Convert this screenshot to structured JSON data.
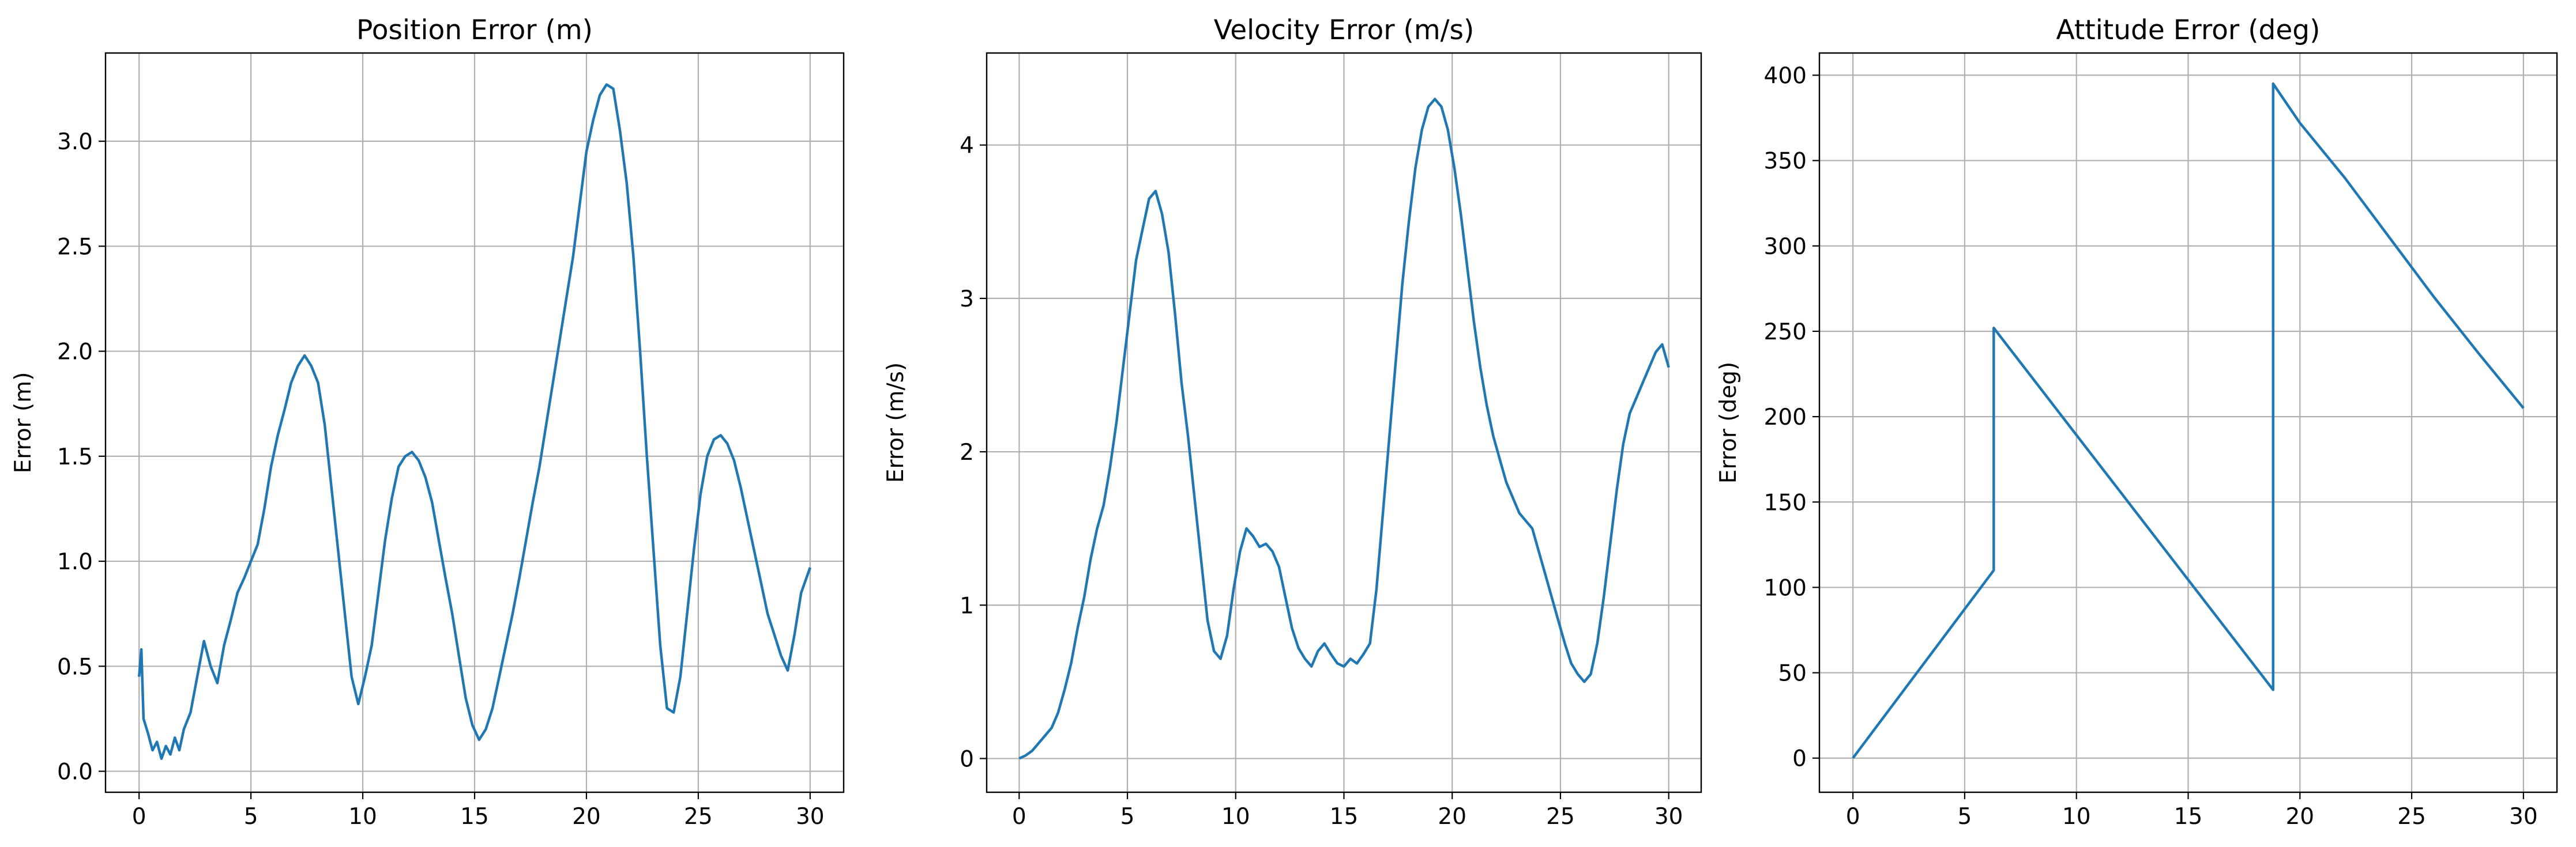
{
  "style": {
    "line_color": "#1f77b4",
    "grid_color": "#b0b0b0",
    "grid": true
  },
  "chart_data": [
    {
      "type": "line",
      "title": "Position Error (m)",
      "xlabel": "",
      "ylabel": "Error (m)",
      "xlim": [
        -1.5,
        31.5
      ],
      "ylim": [
        -0.1,
        3.42
      ],
      "xticks": [
        0,
        5,
        10,
        15,
        20,
        25,
        30
      ],
      "xtick_labels": [
        "0",
        "5",
        "10",
        "15",
        "20",
        "25",
        "30"
      ],
      "yticks": [
        0.0,
        0.5,
        1.0,
        1.5,
        2.0,
        2.5,
        3.0
      ],
      "ytick_labels": [
        "0.0",
        "0.5",
        "1.0",
        "1.5",
        "2.0",
        "2.5",
        "3.0"
      ],
      "series": [
        {
          "x": [
            0,
            0.1,
            0.2,
            0.4,
            0.6,
            0.8,
            1.0,
            1.2,
            1.4,
            1.6,
            1.8,
            2.0,
            2.3,
            2.6,
            2.9,
            3.2,
            3.5,
            3.8,
            4.1,
            4.4,
            4.7,
            5.0,
            5.3,
            5.6,
            5.9,
            6.2,
            6.5,
            6.8,
            7.1,
            7.4,
            7.7,
            8.0,
            8.3,
            8.6,
            8.9,
            9.2,
            9.5,
            9.8,
            10.1,
            10.4,
            10.7,
            11.0,
            11.3,
            11.6,
            11.9,
            12.2,
            12.5,
            12.8,
            13.1,
            13.4,
            13.7,
            14.0,
            14.3,
            14.6,
            14.9,
            15.2,
            15.5,
            15.8,
            16.1,
            16.4,
            16.7,
            17.0,
            17.3,
            17.6,
            17.9,
            18.2,
            18.5,
            18.8,
            19.1,
            19.4,
            19.7,
            20.0,
            20.3,
            20.6,
            20.9,
            21.2,
            21.5,
            21.8,
            22.1,
            22.4,
            22.7,
            23.0,
            23.3,
            23.6,
            23.9,
            24.2,
            24.5,
            24.8,
            25.1,
            25.4,
            25.7,
            26.0,
            26.3,
            26.6,
            26.9,
            27.2,
            27.5,
            27.8,
            28.1,
            28.4,
            28.7,
            29.0,
            29.3,
            29.6,
            30.0
          ],
          "values": [
            0.45,
            0.58,
            0.25,
            0.18,
            0.1,
            0.14,
            0.06,
            0.12,
            0.08,
            0.16,
            0.1,
            0.2,
            0.28,
            0.45,
            0.62,
            0.5,
            0.42,
            0.6,
            0.72,
            0.85,
            0.92,
            1.0,
            1.08,
            1.25,
            1.45,
            1.6,
            1.72,
            1.85,
            1.93,
            1.98,
            1.93,
            1.85,
            1.65,
            1.35,
            1.05,
            0.75,
            0.45,
            0.32,
            0.45,
            0.6,
            0.85,
            1.1,
            1.3,
            1.45,
            1.5,
            1.52,
            1.48,
            1.4,
            1.28,
            1.1,
            0.92,
            0.75,
            0.55,
            0.35,
            0.22,
            0.15,
            0.2,
            0.3,
            0.45,
            0.6,
            0.75,
            0.92,
            1.1,
            1.28,
            1.45,
            1.65,
            1.85,
            2.05,
            2.25,
            2.45,
            2.7,
            2.95,
            3.1,
            3.22,
            3.27,
            3.25,
            3.05,
            2.8,
            2.45,
            2.0,
            1.5,
            1.05,
            0.6,
            0.3,
            0.28,
            0.45,
            0.75,
            1.05,
            1.32,
            1.5,
            1.58,
            1.6,
            1.56,
            1.48,
            1.35,
            1.2,
            1.05,
            0.9,
            0.75,
            0.65,
            0.55,
            0.48,
            0.65,
            0.85,
            0.97
          ]
        }
      ]
    },
    {
      "type": "line",
      "title": "Velocity Error (m/s)",
      "xlabel": "",
      "ylabel": "Error (m/s)",
      "xlim": [
        -1.5,
        31.5
      ],
      "ylim": [
        -0.22,
        4.6
      ],
      "xticks": [
        0,
        5,
        10,
        15,
        20,
        25,
        30
      ],
      "xtick_labels": [
        "0",
        "5",
        "10",
        "15",
        "20",
        "25",
        "30"
      ],
      "yticks": [
        0,
        1,
        2,
        3,
        4
      ],
      "ytick_labels": [
        "0",
        "1",
        "2",
        "3",
        "4"
      ],
      "series": [
        {
          "x": [
            0,
            0.3,
            0.6,
            0.9,
            1.2,
            1.5,
            1.8,
            2.1,
            2.4,
            2.7,
            3.0,
            3.3,
            3.6,
            3.9,
            4.2,
            4.5,
            4.8,
            5.1,
            5.4,
            5.7,
            6.0,
            6.3,
            6.6,
            6.9,
            7.2,
            7.5,
            7.8,
            8.1,
            8.4,
            8.7,
            9.0,
            9.3,
            9.6,
            9.9,
            10.2,
            10.5,
            10.8,
            11.1,
            11.4,
            11.7,
            12.0,
            12.3,
            12.6,
            12.9,
            13.2,
            13.5,
            13.8,
            14.1,
            14.4,
            14.7,
            15.0,
            15.3,
            15.6,
            15.9,
            16.2,
            16.5,
            16.8,
            17.1,
            17.4,
            17.7,
            18.0,
            18.3,
            18.6,
            18.9,
            19.2,
            19.5,
            19.8,
            20.1,
            20.4,
            20.7,
            21.0,
            21.3,
            21.6,
            21.9,
            22.2,
            22.5,
            22.8,
            23.1,
            23.4,
            23.7,
            24.0,
            24.3,
            24.6,
            24.9,
            25.2,
            25.5,
            25.8,
            26.1,
            26.4,
            26.7,
            27.0,
            27.3,
            27.6,
            27.9,
            28.2,
            28.5,
            28.8,
            29.1,
            29.4,
            29.7,
            30.0
          ],
          "values": [
            0.0,
            0.02,
            0.05,
            0.1,
            0.15,
            0.2,
            0.3,
            0.45,
            0.62,
            0.85,
            1.05,
            1.3,
            1.5,
            1.65,
            1.9,
            2.2,
            2.55,
            2.9,
            3.25,
            3.45,
            3.65,
            3.7,
            3.55,
            3.3,
            2.9,
            2.45,
            2.1,
            1.7,
            1.3,
            0.9,
            0.7,
            0.65,
            0.8,
            1.1,
            1.35,
            1.5,
            1.45,
            1.38,
            1.4,
            1.35,
            1.25,
            1.05,
            0.85,
            0.72,
            0.65,
            0.6,
            0.7,
            0.75,
            0.68,
            0.62,
            0.6,
            0.65,
            0.62,
            0.68,
            0.75,
            1.1,
            1.6,
            2.1,
            2.6,
            3.1,
            3.5,
            3.85,
            4.1,
            4.25,
            4.3,
            4.25,
            4.1,
            3.85,
            3.55,
            3.2,
            2.85,
            2.55,
            2.3,
            2.1,
            1.95,
            1.8,
            1.7,
            1.6,
            1.55,
            1.5,
            1.35,
            1.2,
            1.05,
            0.9,
            0.75,
            0.62,
            0.55,
            0.5,
            0.55,
            0.75,
            1.05,
            1.4,
            1.75,
            2.05,
            2.25,
            2.35,
            2.45,
            2.55,
            2.65,
            2.7,
            2.55
          ]
        }
      ]
    },
    {
      "type": "line",
      "title": "Attitude Error (deg)",
      "xlabel": "",
      "ylabel": "Error (deg)",
      "xlim": [
        -1.5,
        31.5
      ],
      "ylim": [
        -20,
        413
      ],
      "xticks": [
        0,
        5,
        10,
        15,
        20,
        25,
        30
      ],
      "xtick_labels": [
        "0",
        "5",
        "10",
        "15",
        "20",
        "25",
        "30"
      ],
      "yticks": [
        0,
        50,
        100,
        150,
        200,
        250,
        300,
        350,
        400
      ],
      "ytick_labels": [
        "0",
        "50",
        "100",
        "150",
        "200",
        "250",
        "300",
        "350",
        "400"
      ],
      "series": [
        {
          "x": [
            0,
            6.3,
            6.3,
            18.8,
            18.8,
            20.0,
            22.0,
            24.0,
            26.0,
            28.0,
            30.0
          ],
          "values": [
            0,
            110,
            252,
            40,
            395,
            372,
            340,
            305,
            270,
            237,
            205
          ]
        }
      ]
    }
  ]
}
